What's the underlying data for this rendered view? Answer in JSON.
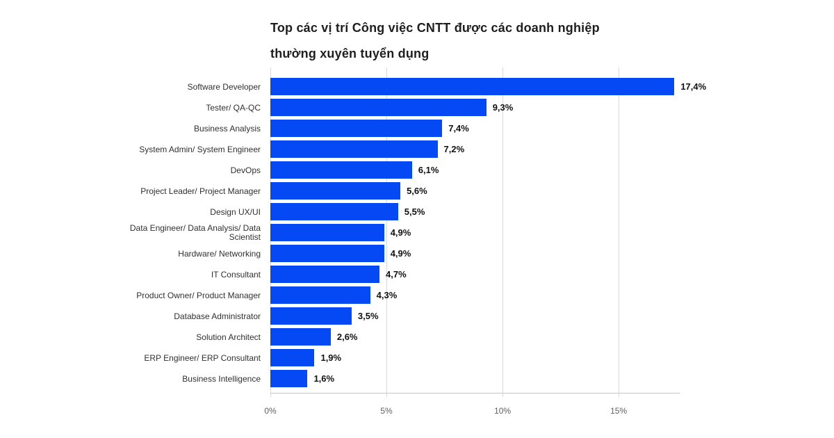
{
  "title": {
    "line1": "Top các vị trí Công việc CNTT được các doanh nghiệp",
    "line2": "thường xuyên tuyển dụng"
  },
  "chart_data": {
    "type": "bar",
    "orientation": "horizontal",
    "title": "Top các vị trí Công việc CNTT được các doanh nghiệp thường xuyên tuyển dụng",
    "categories": [
      "Software Developer",
      "Tester/ QA-QC",
      "Business Analysis",
      "System Admin/ System Engineer",
      "DevOps",
      "Project Leader/ Project Manager",
      "Design UX/UI",
      "Data Engineer/ Data Analysis/ Data Scientist",
      "Hardware/ Networking",
      "IT Consultant",
      "Product Owner/ Product Manager",
      "Database Administrator",
      "Solution Architect",
      "ERP Engineer/ ERP Consultant",
      "Business Intelligence"
    ],
    "values": [
      17.4,
      9.3,
      7.4,
      7.2,
      6.1,
      5.6,
      5.5,
      4.9,
      4.9,
      4.7,
      4.3,
      3.5,
      2.6,
      1.9,
      1.6
    ],
    "value_labels": [
      "17,4%",
      "9,3%",
      "7,4%",
      "7,2%",
      "6,1%",
      "5,6%",
      "5,5%",
      "4,9%",
      "4,9%",
      "4,7%",
      "4,3%",
      "3,5%",
      "2,6%",
      "1,9%",
      "1,6%"
    ],
    "x_ticks": [
      {
        "value": 0,
        "label": "0%"
      },
      {
        "value": 5,
        "label": "5%"
      },
      {
        "value": 10,
        "label": "10%"
      },
      {
        "value": 15,
        "label": "15%"
      }
    ],
    "xlim": [
      0,
      17.6
    ],
    "grid": true,
    "legend": "none",
    "colors": {
      "bar": "#0549f5",
      "gridline": "#d9d9d9",
      "axis_line": "#c6c6c6",
      "tick_text": "#5f5f5f",
      "category_text": "#303030",
      "value_text": "#111111",
      "title_text": "#1e1e1e",
      "background": "#ffffff"
    }
  }
}
